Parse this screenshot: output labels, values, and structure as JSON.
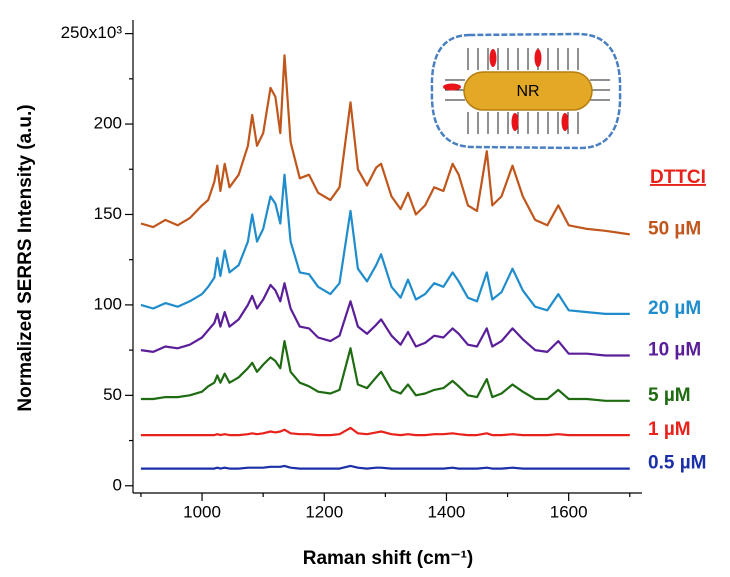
{
  "chart_data": {
    "type": "line",
    "xlabel": "Raman shift (cm⁻¹)",
    "ylabel": "Normalized SERRS Intensity (a.u.)",
    "legend_title": "DTTCI",
    "inset_label": "NR",
    "xlim": [
      887,
      1720
    ],
    "ylim": [
      -4,
      252
    ],
    "xticks": [
      1000,
      1200,
      1400,
      1600
    ],
    "xminorticks": [
      900,
      1100,
      1300,
      1500,
      1700
    ],
    "yticks": [
      0,
      50,
      100,
      150,
      200,
      {
        "value": 250,
        "label": "250x10³"
      }
    ],
    "yminorticks": [
      25,
      75,
      125,
      175,
      225
    ],
    "x": [
      900,
      920,
      940,
      960,
      980,
      1000,
      1010,
      1020,
      1025,
      1030,
      1037,
      1045,
      1060,
      1075,
      1082,
      1090,
      1100,
      1112,
      1120,
      1128,
      1135,
      1145,
      1160,
      1175,
      1190,
      1210,
      1225,
      1243,
      1255,
      1270,
      1285,
      1293,
      1310,
      1325,
      1337,
      1350,
      1365,
      1380,
      1395,
      1410,
      1420,
      1435,
      1450,
      1466,
      1475,
      1490,
      1508,
      1525,
      1545,
      1565,
      1583,
      1600,
      1630,
      1660,
      1700
    ],
    "series": [
      {
        "name": "50 µM",
        "color": "#c0561b",
        "values": [
          145,
          143,
          147,
          144,
          148,
          155,
          158,
          168,
          177,
          163,
          178,
          165,
          172,
          188,
          205,
          188,
          195,
          220,
          215,
          195,
          238,
          190,
          170,
          172,
          162,
          158,
          165,
          212,
          175,
          166,
          176,
          178,
          160,
          153,
          162,
          150,
          155,
          165,
          163,
          178,
          172,
          155,
          152,
          185,
          155,
          160,
          177,
          160,
          147,
          144,
          155,
          144,
          142,
          141,
          139
        ]
      },
      {
        "name": "20 µM",
        "color": "#1f8ccc",
        "values": [
          100,
          98,
          101,
          99,
          102,
          106,
          110,
          115,
          126,
          116,
          130,
          118,
          122,
          135,
          150,
          135,
          142,
          160,
          156,
          145,
          172,
          135,
          118,
          117,
          110,
          106,
          112,
          152,
          120,
          113,
          122,
          128,
          110,
          104,
          114,
          103,
          106,
          112,
          110,
          118,
          113,
          104,
          102,
          118,
          103,
          107,
          120,
          108,
          99,
          97,
          106,
          97,
          96,
          95,
          95
        ]
      },
      {
        "name": "10 µM",
        "color": "#5b1e99",
        "values": [
          75,
          74,
          77,
          76,
          78,
          82,
          86,
          90,
          95,
          88,
          96,
          88,
          92,
          100,
          105,
          98,
          103,
          111,
          108,
          102,
          112,
          98,
          88,
          87,
          82,
          80,
          83,
          102,
          88,
          84,
          89,
          92,
          83,
          78,
          85,
          77,
          79,
          83,
          82,
          87,
          84,
          78,
          77,
          87,
          77,
          80,
          87,
          81,
          75,
          74,
          80,
          73,
          73,
          72,
          72
        ]
      },
      {
        "name": "5 µM",
        "color": "#1e6b12",
        "values": [
          48,
          48,
          49,
          49,
          50,
          52,
          55,
          57,
          61,
          57,
          62,
          57,
          60,
          65,
          68,
          63,
          67,
          71,
          69,
          65,
          80,
          63,
          57,
          55,
          52,
          51,
          53,
          76,
          56,
          54,
          60,
          63,
          53,
          51,
          56,
          50,
          51,
          53,
          54,
          58,
          55,
          50,
          49,
          59,
          49,
          51,
          56,
          52,
          48,
          48,
          53,
          48,
          48,
          47,
          47
        ]
      },
      {
        "name": "1 µM",
        "color": "#e8211a",
        "values": [
          28,
          28,
          28,
          28,
          28,
          28,
          28,
          28,
          28.5,
          28,
          28.5,
          28,
          28,
          28.5,
          29,
          28.5,
          29,
          30,
          29.5,
          30,
          31,
          29,
          28.5,
          28.5,
          28,
          28,
          28.5,
          32,
          29,
          28.5,
          29.5,
          30,
          28.5,
          28,
          28.5,
          28,
          28,
          28.5,
          28.5,
          29,
          28.5,
          28,
          28,
          29,
          28,
          28,
          28.5,
          28,
          28,
          28,
          28.5,
          28,
          28,
          28,
          28
        ]
      },
      {
        "name": "0.5 µM",
        "color": "#1a2fa8",
        "values": [
          9.5,
          9.5,
          9.5,
          9.5,
          9.5,
          9.5,
          9.5,
          9.5,
          10,
          9.5,
          10,
          9.5,
          9.5,
          10,
          10,
          10,
          10,
          10.5,
          10.5,
          10.5,
          11,
          10,
          9.5,
          9.5,
          9.5,
          9.5,
          9.5,
          11,
          10,
          9.5,
          10,
          10,
          9.5,
          9.5,
          9.5,
          9.5,
          9.5,
          9.5,
          9.5,
          10,
          9.5,
          9.5,
          9.5,
          10,
          9.5,
          9.5,
          10,
          9.5,
          9.5,
          9.5,
          9.5,
          9.5,
          9.5,
          9.5,
          9.5
        ]
      }
    ]
  }
}
